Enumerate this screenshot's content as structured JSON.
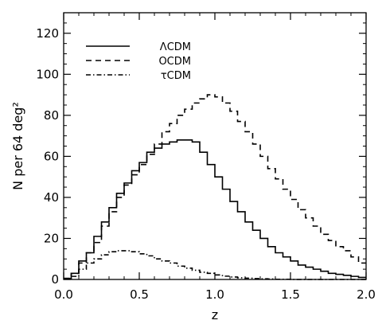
{
  "chart_data": {
    "type": "line",
    "title": "",
    "xlabel": "z",
    "ylabel": "N per 64 deg²",
    "xlim": [
      0.0,
      2.0
    ],
    "ylim": [
      0,
      130
    ],
    "xticks": [
      "0.0",
      "0.5",
      "1.0",
      "1.5",
      "2.0"
    ],
    "yticks": [
      "0",
      "20",
      "40",
      "60",
      "80",
      "100",
      "120"
    ],
    "x_bin_width": 0.05,
    "x_bin_centers": [
      0.025,
      0.075,
      0.125,
      0.175,
      0.225,
      0.275,
      0.325,
      0.375,
      0.425,
      0.475,
      0.525,
      0.575,
      0.625,
      0.675,
      0.725,
      0.775,
      0.825,
      0.875,
      0.925,
      0.975,
      1.025,
      1.075,
      1.125,
      1.175,
      1.225,
      1.275,
      1.325,
      1.375,
      1.425,
      1.475,
      1.525,
      1.575,
      1.625,
      1.675,
      1.725,
      1.775,
      1.825,
      1.875,
      1.925,
      1.975
    ],
    "legend_position": "top-left",
    "series": [
      {
        "name": "ΛCDM",
        "line_style": "solid",
        "values": [
          0.5,
          3,
          9,
          13,
          21,
          28,
          35,
          42,
          47,
          53,
          57,
          62,
          64,
          66,
          67,
          68,
          68,
          67,
          62,
          56,
          50,
          44,
          38,
          33,
          28,
          24,
          20,
          16,
          13,
          11,
          9,
          7,
          6,
          5,
          4,
          3,
          2.5,
          2,
          1.5,
          1
        ]
      },
      {
        "name": "OCDM",
        "line_style": "dashed",
        "values": [
          0.5,
          3,
          8,
          13,
          18,
          26,
          33,
          40,
          46,
          51,
          56,
          61,
          66,
          72,
          76,
          80,
          83,
          86,
          88,
          90,
          89,
          86,
          82,
          77,
          72,
          66,
          60,
          54,
          49,
          44,
          39,
          34,
          30,
          26,
          22,
          19,
          16,
          14,
          11,
          8
        ]
      },
      {
        "name": "τCDM",
        "line_style": "dashdot",
        "values": [
          0.2,
          1.5,
          5,
          8,
          10,
          12,
          13.5,
          14,
          14,
          13.5,
          12.5,
          11.5,
          10,
          9,
          8,
          6.5,
          5.5,
          4.5,
          3.5,
          3,
          2.2,
          1.6,
          1.2,
          0.8,
          0.6,
          0.4,
          0.3,
          0.2,
          0.1,
          0.1,
          0,
          0,
          0,
          0,
          0,
          0,
          0,
          0,
          0,
          0
        ]
      }
    ]
  }
}
